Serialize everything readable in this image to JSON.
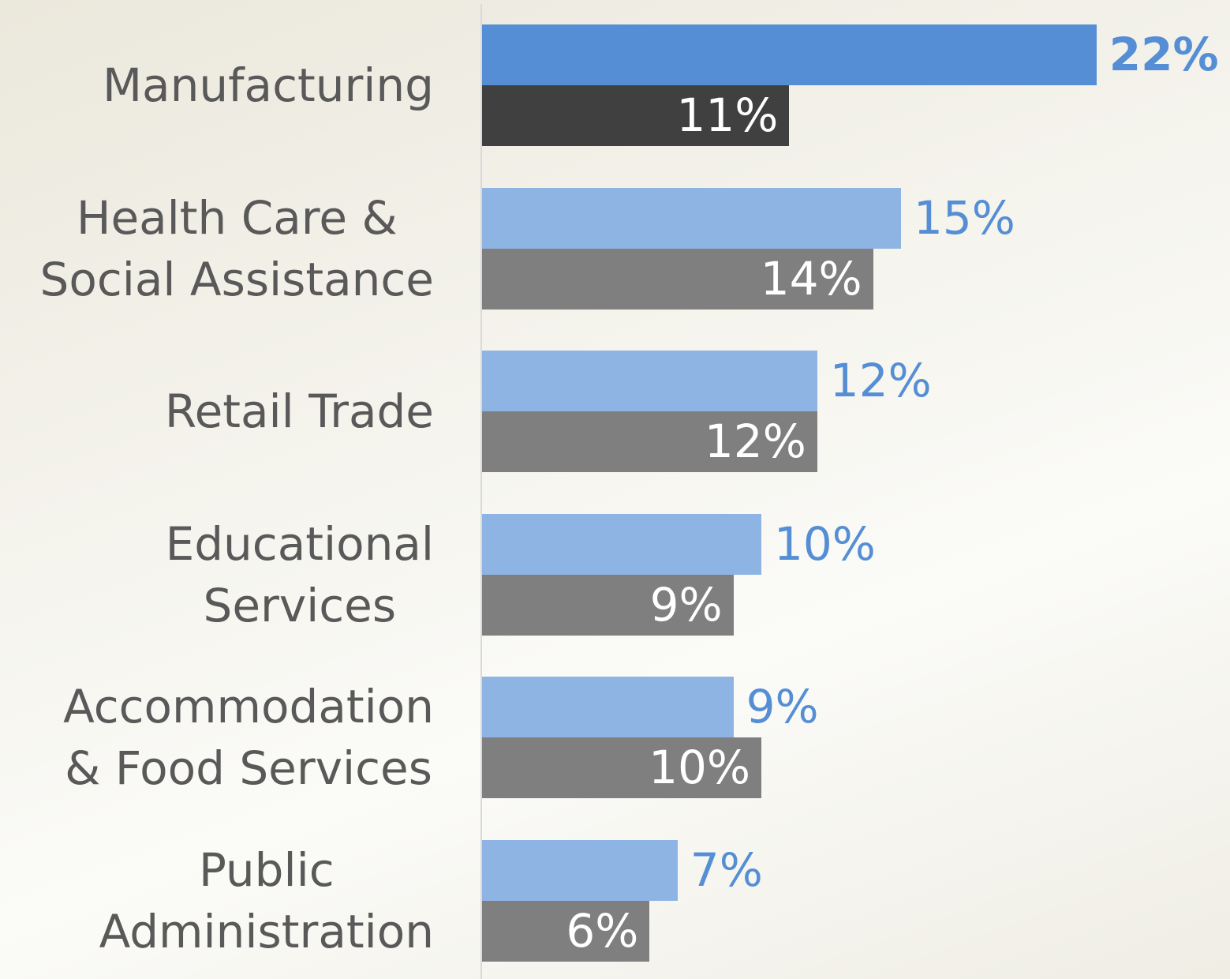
{
  "chart_data": {
    "type": "bar",
    "orientation": "horizontal",
    "categories": [
      "Manufacturing",
      "Health Care &\nSocial Assistance",
      "Retail Trade",
      "Educational\nServices",
      "Accommodation\n& Food Services",
      "Public\nAdministration"
    ],
    "series": [
      {
        "colors": [
          "#558ed5",
          "#8eb4e3",
          "#8eb4e3",
          "#8eb4e3",
          "#8eb4e3",
          "#8eb4e3"
        ],
        "values": [
          22,
          15,
          12,
          10,
          9,
          7
        ],
        "value_labels": [
          "22%",
          "15%",
          "12%",
          "10%",
          "9%",
          "7%"
        ]
      },
      {
        "colors": [
          "#404040",
          "#7f7f7f",
          "#7f7f7f",
          "#7f7f7f",
          "#7f7f7f",
          "#7f7f7f"
        ],
        "values": [
          11,
          14,
          12,
          9,
          10,
          6
        ],
        "value_labels": [
          "11%",
          "14%",
          "12%",
          "9%",
          "10%",
          "6%"
        ]
      }
    ]
  }
}
